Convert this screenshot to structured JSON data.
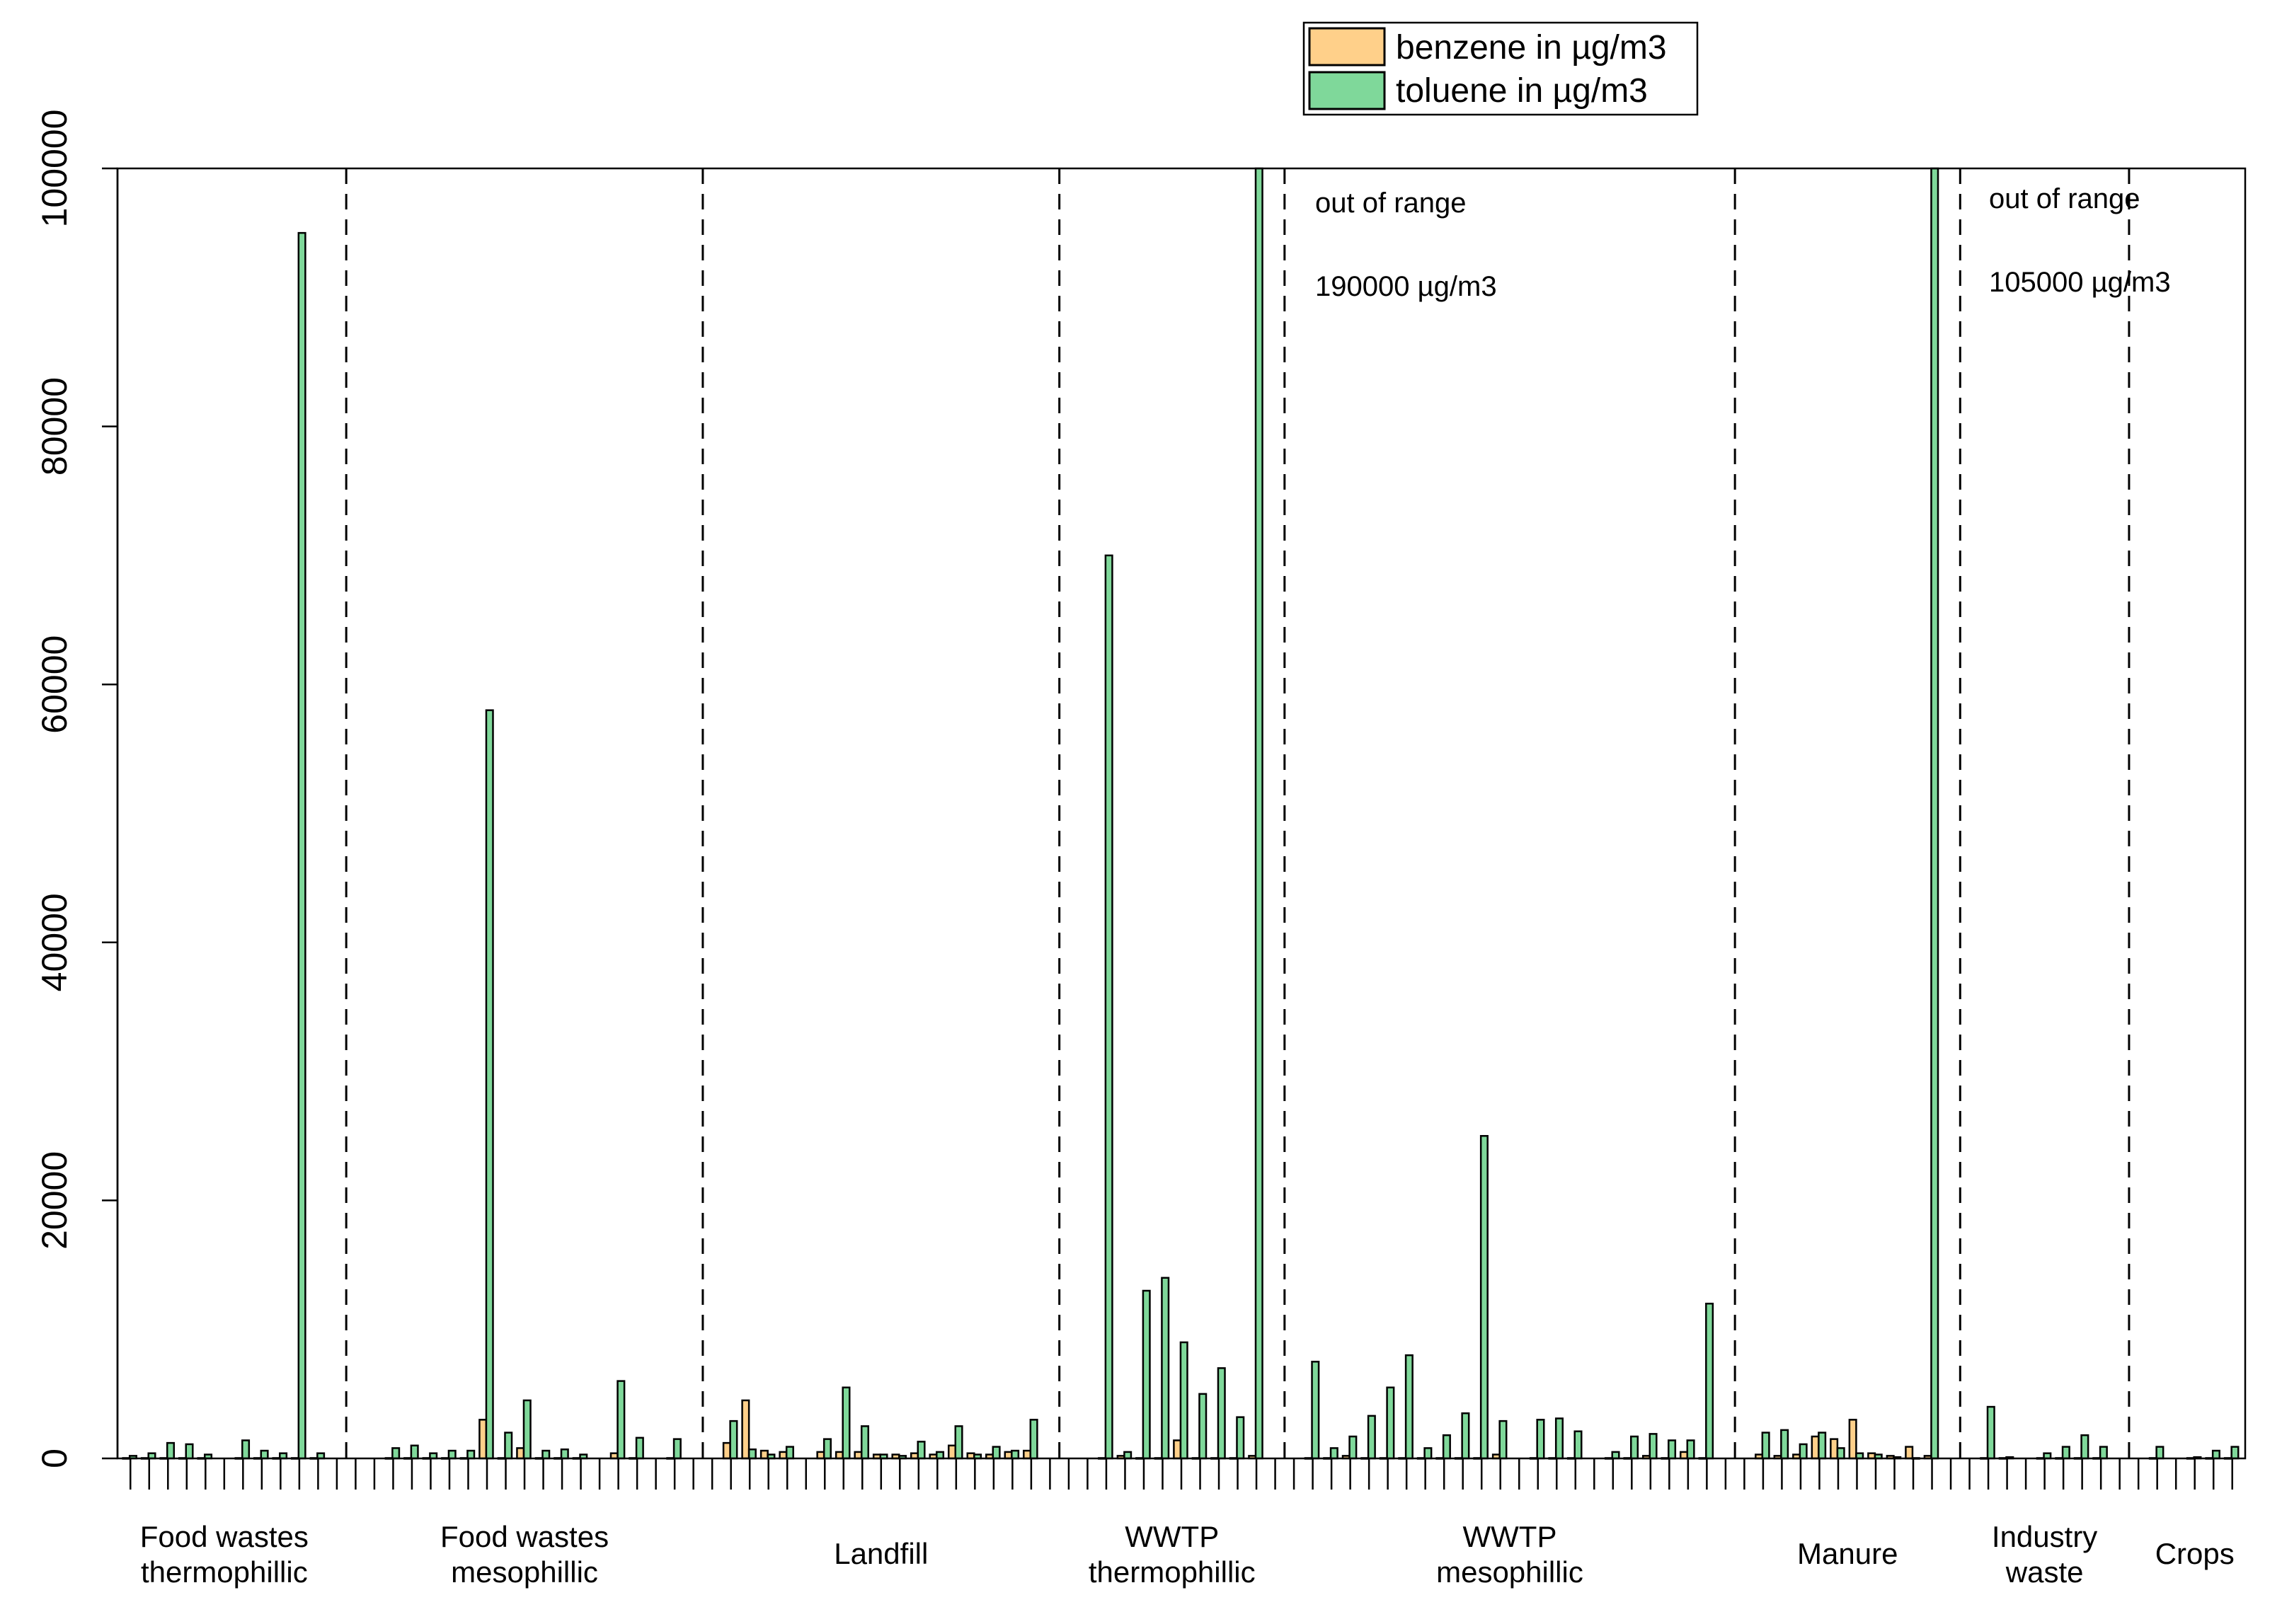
{
  "chart_data": {
    "type": "bar",
    "title": "",
    "xlabel": "",
    "ylabel": "",
    "ylim": [
      0,
      100000
    ],
    "yticks": [
      "0",
      "20000",
      "40000",
      "60000",
      "80000",
      "100000"
    ],
    "grid": false,
    "legend": {
      "position": "top-center",
      "entries": [
        {
          "label": "benzene in µg/m3",
          "color": "#FFD08A"
        },
        {
          "label": "toluene in µg/m3",
          "color": "#7FD89A"
        }
      ]
    },
    "series_colors": {
      "benzene": "#FFD08A",
      "toluene": "#7FD89A"
    },
    "groups": [
      {
        "label_lines": [
          "Food wastes",
          "thermophillic"
        ],
        "samples": [
          {
            "benzene": 30,
            "toluene": 200
          },
          {
            "benzene": 30,
            "toluene": 400
          },
          {
            "benzene": 30,
            "toluene": 1200
          },
          {
            "benzene": 30,
            "toluene": 1100
          },
          {
            "benzene": 30,
            "toluene": 300
          },
          {
            "benzene": 0,
            "toluene": 0
          },
          {
            "benzene": 30,
            "toluene": 1400
          },
          {
            "benzene": 30,
            "toluene": 600
          },
          {
            "benzene": 30,
            "toluene": 400
          },
          {
            "benzene": 30,
            "toluene": 95000
          },
          {
            "benzene": 30,
            "toluene": 400
          }
        ]
      },
      {
        "label_lines": [
          "Food wastes",
          "mesophillic"
        ],
        "samples": [
          {
            "benzene": 0,
            "toluene": 0
          },
          {
            "benzene": 30,
            "toluene": 800
          },
          {
            "benzene": 30,
            "toluene": 1000
          },
          {
            "benzene": 30,
            "toluene": 400
          },
          {
            "benzene": 30,
            "toluene": 600
          },
          {
            "benzene": 30,
            "toluene": 600
          },
          {
            "benzene": 3000,
            "toluene": 58000
          },
          {
            "benzene": 30,
            "toluene": 2000
          },
          {
            "benzene": 800,
            "toluene": 4500
          },
          {
            "benzene": 30,
            "toluene": 600
          },
          {
            "benzene": 30,
            "toluene": 700
          },
          {
            "benzene": 30,
            "toluene": 300
          },
          {
            "benzene": 0,
            "toluene": 0
          },
          {
            "benzene": 400,
            "toluene": 6000
          },
          {
            "benzene": 30,
            "toluene": 1600
          },
          {
            "benzene": 0,
            "toluene": 0
          },
          {
            "benzene": 30,
            "toluene": 1500
          }
        ]
      },
      {
        "label_lines": [
          "Landfill"
        ],
        "samples": [
          {
            "benzene": 1200,
            "toluene": 2900
          },
          {
            "benzene": 4500,
            "toluene": 700
          },
          {
            "benzene": 600,
            "toluene": 300
          },
          {
            "benzene": 500,
            "toluene": 900
          },
          {
            "benzene": 0,
            "toluene": 0
          },
          {
            "benzene": 500,
            "toluene": 1500
          },
          {
            "benzene": 500,
            "toluene": 5500
          },
          {
            "benzene": 500,
            "toluene": 2500
          },
          {
            "benzene": 300,
            "toluene": 300
          },
          {
            "benzene": 300,
            "toluene": 200
          },
          {
            "benzene": 400,
            "toluene": 1300
          },
          {
            "benzene": 300,
            "toluene": 500
          },
          {
            "benzene": 1000,
            "toluene": 2500
          },
          {
            "benzene": 400,
            "toluene": 300
          },
          {
            "benzene": 300,
            "toluene": 900
          },
          {
            "benzene": 500,
            "toluene": 600
          },
          {
            "benzene": 600,
            "toluene": 3000
          }
        ]
      },
      {
        "label_lines": [
          "WWTP",
          "thermophillic"
        ],
        "samples": [
          {
            "benzene": 0,
            "toluene": 0
          },
          {
            "benzene": 30,
            "toluene": 70000
          },
          {
            "benzene": 200,
            "toluene": 500
          },
          {
            "benzene": 30,
            "toluene": 13000
          },
          {
            "benzene": 30,
            "toluene": 14000
          },
          {
            "benzene": 1400,
            "toluene": 9000
          },
          {
            "benzene": 30,
            "toluene": 5000
          },
          {
            "benzene": 30,
            "toluene": 7000
          },
          {
            "benzene": 30,
            "toluene": 3200
          },
          {
            "benzene": 200,
            "toluene": 100000
          }
        ]
      },
      {
        "label_lines": [
          "WWTP",
          "mesophillic"
        ],
        "samples": [
          {
            "benzene": 30,
            "toluene": 7500
          },
          {
            "benzene": 30,
            "toluene": 800
          },
          {
            "benzene": 200,
            "toluene": 1700
          },
          {
            "benzene": 30,
            "toluene": 3300
          },
          {
            "benzene": 30,
            "toluene": 5500
          },
          {
            "benzene": 30,
            "toluene": 8000
          },
          {
            "benzene": 30,
            "toluene": 800
          },
          {
            "benzene": 30,
            "toluene": 1800
          },
          {
            "benzene": 30,
            "toluene": 3500
          },
          {
            "benzene": 30,
            "toluene": 25000
          },
          {
            "benzene": 300,
            "toluene": 2900
          },
          {
            "benzene": 0,
            "toluene": 0
          },
          {
            "benzene": 30,
            "toluene": 3000
          },
          {
            "benzene": 30,
            "toluene": 3100
          },
          {
            "benzene": 30,
            "toluene": 2100
          },
          {
            "benzene": 0,
            "toluene": 0
          },
          {
            "benzene": 30,
            "toluene": 500
          },
          {
            "benzene": 30,
            "toluene": 1700
          },
          {
            "benzene": 200,
            "toluene": 1900
          },
          {
            "benzene": 30,
            "toluene": 1400
          },
          {
            "benzene": 500,
            "toluene": 1400
          },
          {
            "benzene": 30,
            "toluene": 12000
          }
        ]
      },
      {
        "label_lines": [
          "Manure"
        ],
        "samples": [
          {
            "benzene": 300,
            "toluene": 2000
          },
          {
            "benzene": 200,
            "toluene": 2200
          },
          {
            "benzene": 300,
            "toluene": 1100
          },
          {
            "benzene": 1700,
            "toluene": 2000
          },
          {
            "benzene": 1500,
            "toluene": 800
          },
          {
            "benzene": 3000,
            "toluene": 400
          },
          {
            "benzene": 400,
            "toluene": 300
          },
          {
            "benzene": 200,
            "toluene": 100
          },
          {
            "benzene": 900,
            "toluene": 30
          },
          {
            "benzene": 200,
            "toluene": 100000
          }
        ]
      },
      {
        "label_lines": [
          "Industry",
          "waste"
        ],
        "samples": [
          {
            "benzene": 30,
            "toluene": 4000
          },
          {
            "benzene": 30,
            "toluene": 100
          },
          {
            "benzene": 0,
            "toluene": 0
          },
          {
            "benzene": 30,
            "toluene": 400
          },
          {
            "benzene": 30,
            "toluene": 900
          },
          {
            "benzene": 30,
            "toluene": 1800
          },
          {
            "benzene": 30,
            "toluene": 900
          }
        ]
      },
      {
        "label_lines": [
          "Crops"
        ],
        "samples": [
          {
            "benzene": 30,
            "toluene": 900
          },
          {
            "benzene": 0,
            "toluene": 0
          },
          {
            "benzene": 30,
            "toluene": 100
          },
          {
            "benzene": 30,
            "toluene": 600
          },
          {
            "benzene": 30,
            "toluene": 900
          }
        ]
      }
    ],
    "annotations": [
      {
        "lines": [
          "out of range",
          "190000 µg/m3"
        ]
      },
      {
        "lines": [
          "out of range",
          "105000 µg/m3"
        ]
      }
    ]
  }
}
